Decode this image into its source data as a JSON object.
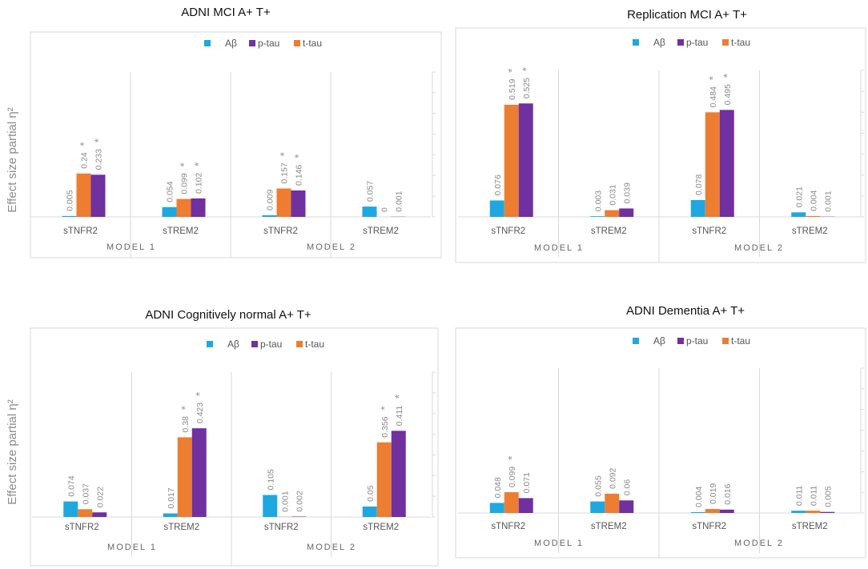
{
  "y_axis_label": "Effect size partial η²",
  "legend": [
    {
      "name": "Aβ",
      "color": "#1fa8e0"
    },
    {
      "name": "p-tau",
      "color": "#7030a0"
    },
    {
      "name": "t-tau",
      "color": "#ed7d31"
    }
  ],
  "chart_data": [
    {
      "type": "bar",
      "title": "ADNI MCI A+ T+",
      "ylim": [
        0,
        0.7
      ],
      "models": [
        "MODEL 1",
        "MODEL 2"
      ],
      "categories": [
        "sTNFR2",
        "sTREM2",
        "sTNFR2",
        "sTREM2"
      ],
      "series": [
        {
          "name": "Aβ",
          "values": [
            0.005,
            0.054,
            0.009,
            0.057
          ],
          "labels": [
            "0.005",
            "0.054",
            "0.009",
            "0.057"
          ],
          "significant": [
            false,
            false,
            false,
            false
          ]
        },
        {
          "name": "t-tau",
          "values": [
            0.24,
            0.099,
            0.157,
            0
          ],
          "labels": [
            "0.24",
            "0.099",
            "0.157",
            "0"
          ],
          "significant": [
            true,
            true,
            true,
            false
          ]
        },
        {
          "name": "p-tau",
          "values": [
            0.233,
            0.102,
            0.146,
            0.001
          ],
          "labels": [
            "0.233",
            "0.102",
            "0.146",
            "0.001"
          ],
          "significant": [
            true,
            true,
            true,
            false
          ]
        }
      ]
    },
    {
      "type": "bar",
      "title": "Replication MCI A+ T+",
      "ylim": [
        0,
        0.7
      ],
      "models": [
        "MODEL 1",
        "MODEL 2"
      ],
      "categories": [
        "sTNFR2",
        "sTREM2",
        "sTNFR2",
        "sTREM2"
      ],
      "series": [
        {
          "name": "Aβ",
          "values": [
            0.076,
            0.003,
            0.078,
            0.021
          ],
          "labels": [
            "0.076",
            "0.003",
            "0.078",
            "0.021"
          ],
          "significant": [
            false,
            false,
            false,
            false
          ]
        },
        {
          "name": "t-tau",
          "values": [
            0.519,
            0.031,
            0.484,
            0.004
          ],
          "labels": [
            "0.519",
            "0.031",
            "0.484",
            "0.004"
          ],
          "significant": [
            true,
            false,
            true,
            false
          ]
        },
        {
          "name": "p-tau",
          "values": [
            0.525,
            0.039,
            0.495,
            0.001
          ],
          "labels": [
            "0.525",
            "0.039",
            "0.495",
            "0.001"
          ],
          "significant": [
            true,
            false,
            true,
            false
          ]
        }
      ]
    },
    {
      "type": "bar",
      "title": "ADNI Cognitively normal A+ T+",
      "ylim": [
        0,
        0.7
      ],
      "models": [
        "MODEL 1",
        "MODEL 2"
      ],
      "categories": [
        "sTNFR2",
        "sTREM2",
        "sTNFR2",
        "sTREM2"
      ],
      "series": [
        {
          "name": "Aβ",
          "values": [
            0.074,
            0.017,
            0.105,
            0.05
          ],
          "labels": [
            "0.074",
            "0.017",
            "0.105",
            "0.05"
          ],
          "significant": [
            false,
            false,
            false,
            false
          ]
        },
        {
          "name": "t-tau",
          "values": [
            0.037,
            0.38,
            0.001,
            0.356
          ],
          "labels": [
            "0.037",
            "0.38",
            "0.001",
            "0.356"
          ],
          "significant": [
            false,
            true,
            false,
            true
          ]
        },
        {
          "name": "p-tau",
          "values": [
            0.022,
            0.423,
            0.002,
            0.411
          ],
          "labels": [
            "0.022",
            "0.423",
            "0.002",
            "0.411"
          ],
          "significant": [
            false,
            true,
            false,
            true
          ]
        }
      ]
    },
    {
      "type": "bar",
      "title": "ADNI Dementia A+ T+",
      "ylim": [
        0,
        0.7
      ],
      "models": [
        "MODEL 1",
        "MODEL 2"
      ],
      "categories": [
        "sTNFR2",
        "sTREM2",
        "sTNFR2",
        "sTREM2"
      ],
      "series": [
        {
          "name": "Aβ",
          "values": [
            0.048,
            0.055,
            0.004,
            0.011
          ],
          "labels": [
            "0.048",
            "0.055",
            "0.004",
            "0.011"
          ],
          "significant": [
            false,
            false,
            false,
            false
          ]
        },
        {
          "name": "t-tau",
          "values": [
            0.099,
            0.092,
            0.019,
            0.011
          ],
          "labels": [
            "0.099",
            "0.092",
            "0.019",
            "0.011"
          ],
          "significant": [
            true,
            false,
            false,
            false
          ]
        },
        {
          "name": "p-tau",
          "values": [
            0.071,
            0.06,
            0.016,
            0.005
          ],
          "labels": [
            "0.071",
            "0.06",
            "0.016",
            "0.005"
          ],
          "significant": [
            false,
            false,
            false,
            false
          ]
        }
      ]
    }
  ]
}
